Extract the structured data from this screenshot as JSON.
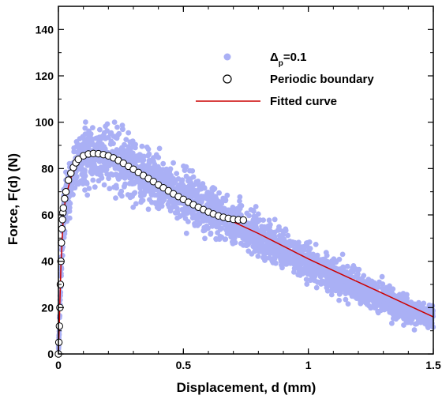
{
  "chart_data": {
    "type": "scatter",
    "title": "",
    "xlabel": "Displacement, d (mm)",
    "ylabel": "Force, F(d) (N)",
    "xlim": [
      0,
      1.5
    ],
    "ylim": [
      0,
      150
    ],
    "xticks": [
      0,
      0.5,
      1,
      1.5
    ],
    "xtick_labels": [
      "0",
      "0.5",
      "1",
      "1.5"
    ],
    "yticks": [
      0,
      20,
      40,
      60,
      80,
      100,
      120,
      140
    ],
    "ytick_labels": [
      "0",
      "20",
      "40",
      "60",
      "80",
      "100",
      "120",
      "140"
    ],
    "grid": false,
    "legend_position": "top-right",
    "series": [
      {
        "name_prefix": "Δ",
        "name_subscript": "p",
        "name_suffix": "=0.1",
        "kind": "scatter-cloud",
        "color": "#aab0f5",
        "band": {
          "x": [
            0.0,
            0.01,
            0.02,
            0.03,
            0.05,
            0.08,
            0.1,
            0.15,
            0.2,
            0.3,
            0.4,
            0.5,
            0.6,
            0.7,
            0.8,
            0.9,
            1.0,
            1.1,
            1.2,
            1.3,
            1.4,
            1.5
          ],
          "center": [
            0,
            35,
            58,
            66,
            75,
            82,
            84,
            86,
            86,
            81,
            74,
            68,
            62,
            57,
            51,
            45,
            39,
            34,
            29,
            24,
            19,
            16
          ],
          "spread": [
            0,
            6,
            8,
            9,
            10,
            11,
            12,
            12,
            12,
            11,
            10,
            10,
            9,
            8,
            8,
            7,
            7,
            7,
            6,
            6,
            5,
            4
          ],
          "max": [
            0,
            45,
            70,
            80,
            90,
            100,
            103,
            106,
            110,
            102,
            95,
            90,
            83,
            77,
            70,
            63,
            57,
            50,
            45,
            39,
            33,
            25
          ]
        }
      },
      {
        "name": "Periodic boundary",
        "kind": "markers",
        "marker": "open-circle",
        "x": [
          0,
          0.002,
          0.004,
          0.006,
          0.008,
          0.01,
          0.012,
          0.014,
          0.016,
          0.018,
          0.02,
          0.025,
          0.03,
          0.04,
          0.05,
          0.06,
          0.07,
          0.08,
          0.1,
          0.12,
          0.14,
          0.16,
          0.18,
          0.2,
          0.22,
          0.24,
          0.26,
          0.28,
          0.3,
          0.32,
          0.34,
          0.36,
          0.38,
          0.4,
          0.42,
          0.44,
          0.46,
          0.48,
          0.5,
          0.52,
          0.54,
          0.56,
          0.58,
          0.6,
          0.62,
          0.64,
          0.66,
          0.68,
          0.7,
          0.72,
          0.74
        ],
        "y": [
          0,
          5,
          12,
          20,
          30,
          40,
          48,
          54,
          58,
          61,
          63,
          67,
          70,
          75,
          78,
          80.5,
          82.5,
          84,
          85.5,
          86.3,
          86.5,
          86.4,
          86,
          85.5,
          84.6,
          83.5,
          82.3,
          81,
          79.7,
          78.3,
          77,
          75.7,
          74.4,
          73,
          71.7,
          70.4,
          69.1,
          67.9,
          66.7,
          65.5,
          64.4,
          63.3,
          62.3,
          61.3,
          60.4,
          59.6,
          59,
          58.5,
          58.1,
          57.9,
          57.8
        ]
      },
      {
        "name": "Fitted curve",
        "kind": "line",
        "color": "#cc0000",
        "x": [
          0,
          0.01,
          0.02,
          0.03,
          0.05,
          0.08,
          0.1,
          0.15,
          0.2,
          0.3,
          0.4,
          0.5,
          0.6,
          0.7,
          0.8,
          0.9,
          1.0,
          1.1,
          1.2,
          1.3,
          1.4,
          1.5
        ],
        "y": [
          0,
          38,
          60,
          68,
          76,
          83,
          85,
          86.5,
          85.8,
          80,
          73.5,
          67.5,
          62,
          57,
          52,
          46.5,
          41,
          36,
          31,
          26,
          21,
          16
        ]
      }
    ]
  }
}
